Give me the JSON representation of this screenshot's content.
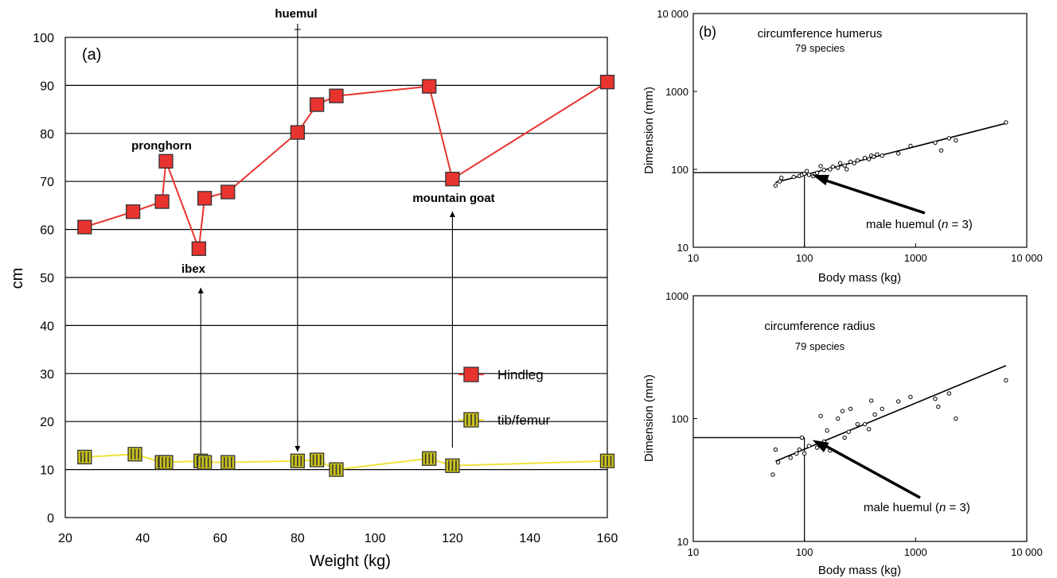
{
  "chart_data": [
    {
      "type": "line",
      "panel_label": "(a)",
      "xlabel": "Weight (kg)",
      "ylabel": "cm",
      "xlim": [
        20,
        160
      ],
      "ylim": [
        0,
        100
      ],
      "x_ticks": [
        "20",
        "40",
        "60",
        "80",
        "100",
        "120",
        "140",
        "160"
      ],
      "y_ticks": [
        "0",
        "10",
        "20",
        "30",
        "40",
        "50",
        "60",
        "70",
        "80",
        "90",
        "100"
      ],
      "grid": "horizontal",
      "legend_position": "right",
      "series": [
        {
          "name": "Hindleg",
          "color": "#e8332e",
          "marker": "square-red",
          "x": [
            25,
            37.5,
            45,
            46,
            54.5,
            56,
            62,
            80,
            85,
            90,
            114,
            120,
            160
          ],
          "y": [
            60.5,
            63.7,
            65.8,
            74.2,
            56,
            66.5,
            67.8,
            80.2,
            86,
            87.8,
            89.8,
            70.5,
            90.7
          ]
        },
        {
          "name": "tib/femur",
          "color": "#f0e33c",
          "marker": "square-yellow-striped",
          "x": [
            25,
            38,
            45,
            46,
            55,
            56,
            62,
            80,
            85,
            90,
            114,
            120,
            160
          ],
          "y": [
            12.6,
            13.2,
            11.5,
            11.5,
            11.8,
            11.5,
            11.5,
            11.8,
            12,
            10,
            12.3,
            10.8,
            11.8
          ]
        }
      ],
      "annotations": [
        {
          "text": "huemul",
          "x": 80,
          "arrow": "down"
        },
        {
          "text": "pronghorn",
          "x": 46
        },
        {
          "text": "ibex",
          "x": 55,
          "arrow": "up"
        },
        {
          "text": "mountain goat",
          "x": 120,
          "arrow": "up"
        }
      ]
    },
    {
      "type": "scatter",
      "panel_label": "(b)",
      "title": "circumference humerus",
      "subtitle": "79 species",
      "xlabel": "Body mass (kg)",
      "ylabel": "Dimension (mm)",
      "x_scale": "log",
      "y_scale": "log",
      "xlim": [
        10,
        10000
      ],
      "ylim": [
        10,
        10000
      ],
      "x_ticks": [
        "10",
        "100",
        "1000",
        "10 000"
      ],
      "y_ticks": [
        "10",
        "100",
        "1000",
        "10 000"
      ],
      "annotation": "male huemul (n = 3)",
      "fit_line": {
        "x": [
          55,
          6500
        ],
        "y": [
          68,
          390
        ]
      },
      "reference": {
        "x": 100,
        "y": 91
      },
      "points": {
        "x": [
          55,
          60,
          62,
          80,
          90,
          95,
          100,
          105,
          110,
          120,
          130,
          140,
          150,
          170,
          180,
          200,
          210,
          230,
          240,
          260,
          280,
          300,
          350,
          380,
          400,
          420,
          450,
          500,
          700,
          900,
          1500,
          1700,
          2000,
          2300,
          6500
        ],
        "y": [
          62,
          70,
          78,
          80,
          82,
          85,
          88,
          95,
          85,
          82,
          90,
          110,
          98,
          100,
          108,
          105,
          120,
          112,
          100,
          125,
          120,
          130,
          140,
          135,
          150,
          145,
          155,
          150,
          160,
          200,
          220,
          175,
          250,
          235,
          400
        ]
      }
    },
    {
      "type": "scatter",
      "title": "circumference radius",
      "subtitle": "79 species",
      "xlabel": "Body mass (kg)",
      "ylabel": "Dimension (mm)",
      "x_scale": "log",
      "y_scale": "log",
      "xlim": [
        10,
        10000
      ],
      "ylim": [
        10,
        1000
      ],
      "x_ticks": [
        "10",
        "100",
        "1000",
        "10 000"
      ],
      "y_ticks": [
        "10",
        "100",
        "1000"
      ],
      "annotation": "male huemul (n = 3)",
      "fit_line": {
        "x": [
          55,
          6500
        ],
        "y": [
          45,
          270
        ]
      },
      "reference": {
        "x": 100,
        "y": 70
      },
      "points": {
        "x": [
          52,
          55,
          58,
          75,
          85,
          90,
          95,
          100,
          110,
          130,
          140,
          150,
          160,
          170,
          200,
          220,
          230,
          250,
          260,
          300,
          350,
          380,
          400,
          430,
          500,
          700,
          900,
          1500,
          1600,
          2000,
          2300,
          6500
        ],
        "y": [
          35,
          56,
          44,
          48,
          52,
          56,
          70,
          52,
          60,
          58,
          105,
          65,
          80,
          55,
          100,
          115,
          70,
          78,
          120,
          90,
          90,
          82,
          140,
          108,
          120,
          138,
          150,
          145,
          125,
          160,
          100,
          205
        ]
      }
    }
  ]
}
